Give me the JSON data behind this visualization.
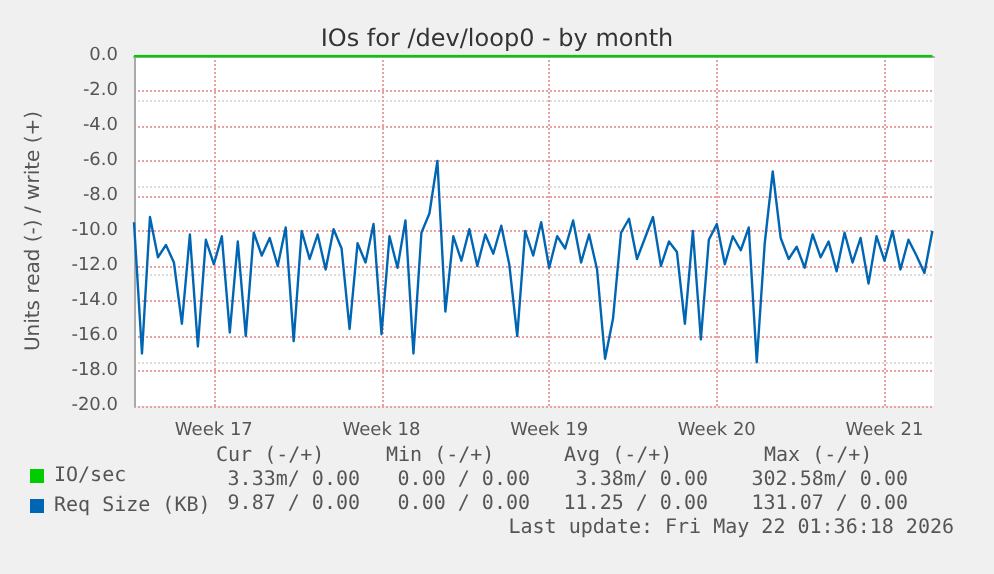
{
  "chart_data": {
    "type": "line",
    "title": "IOs for /dev/loop0 - by month",
    "ylabel": "Units read (-) / write (+)",
    "xlim": [
      "2026-04-18T16:00",
      "2026-05-22T01:36"
    ],
    "xticks": [
      {
        "value": "2026-04-22",
        "label": "Week 17"
      },
      {
        "value": "2026-04-29",
        "label": "Week 18"
      },
      {
        "value": "2026-05-06",
        "label": "Week 19"
      },
      {
        "value": "2026-05-13",
        "label": "Week 20"
      },
      {
        "value": "2026-05-20",
        "label": "Week 21"
      }
    ],
    "ylim": [
      -20,
      0
    ],
    "yticks": [
      {
        "value": -20,
        "label": "-20.0"
      },
      {
        "value": -18,
        "label": "-18.0"
      },
      {
        "value": -16,
        "label": "-16.0"
      },
      {
        "value": -14,
        "label": "-14.0"
      },
      {
        "value": -12,
        "label": "-12.0"
      },
      {
        "value": -10,
        "label": "-10.0"
      },
      {
        "value": -8,
        "label": "-8.0"
      },
      {
        "value": -6,
        "label": "-6.0"
      },
      {
        "value": -4,
        "label": "-4.0"
      },
      {
        "value": -2,
        "label": "-2.0"
      },
      {
        "value": 0,
        "label": "0.0"
      }
    ],
    "grid": true,
    "legend": "bottom left",
    "marker": "none",
    "line_style": "solid",
    "series": [
      {
        "name": "IO/sec",
        "color": "#00cc00",
        "x": [
          "2026-04-18T16:00",
          "2026-05-22T00:00"
        ],
        "values": [
          0,
          0
        ]
      },
      {
        "name": "Req Size (KB)",
        "color": "#0066b3",
        "x": [
          "2026-04-18T16:00",
          "2026-04-19T00:00",
          "2026-04-19T08:00",
          "2026-04-19T16:00",
          "2026-04-20T00:00",
          "2026-04-20T08:00",
          "2026-04-20T16:00",
          "2026-04-21T00:00",
          "2026-04-21T08:00",
          "2026-04-21T16:00",
          "2026-04-22T00:00",
          "2026-04-22T08:00",
          "2026-04-22T16:00",
          "2026-04-23T00:00",
          "2026-04-23T08:00",
          "2026-04-23T16:00",
          "2026-04-24T00:00",
          "2026-04-24T08:00",
          "2026-04-24T16:00",
          "2026-04-25T00:00",
          "2026-04-25T08:00",
          "2026-04-25T16:00",
          "2026-04-26T00:00",
          "2026-04-26T08:00",
          "2026-04-26T16:00",
          "2026-04-27T00:00",
          "2026-04-27T08:00",
          "2026-04-27T16:00",
          "2026-04-28T00:00",
          "2026-04-28T08:00",
          "2026-04-28T16:00",
          "2026-04-29T00:00",
          "2026-04-29T08:00",
          "2026-04-29T16:00",
          "2026-04-30T00:00",
          "2026-04-30T08:00",
          "2026-04-30T16:00",
          "2026-05-01T00:00",
          "2026-05-01T08:00",
          "2026-05-01T16:00",
          "2026-05-02T00:00",
          "2026-05-02T08:00",
          "2026-05-02T16:00",
          "2026-05-03T00:00",
          "2026-05-03T08:00",
          "2026-05-03T16:00",
          "2026-05-04T00:00",
          "2026-05-04T08:00",
          "2026-05-04T16:00",
          "2026-05-05T00:00",
          "2026-05-05T08:00",
          "2026-05-05T16:00",
          "2026-05-06T00:00",
          "2026-05-06T08:00",
          "2026-05-06T16:00",
          "2026-05-07T00:00",
          "2026-05-07T08:00",
          "2026-05-07T16:00",
          "2026-05-08T00:00",
          "2026-05-08T08:00",
          "2026-05-08T16:00",
          "2026-05-09T00:00",
          "2026-05-09T08:00",
          "2026-05-09T16:00",
          "2026-05-10T00:00",
          "2026-05-10T08:00",
          "2026-05-10T16:00",
          "2026-05-11T00:00",
          "2026-05-11T08:00",
          "2026-05-11T16:00",
          "2026-05-12T00:00",
          "2026-05-12T08:00",
          "2026-05-12T16:00",
          "2026-05-13T00:00",
          "2026-05-13T08:00",
          "2026-05-13T16:00",
          "2026-05-14T00:00",
          "2026-05-14T08:00",
          "2026-05-14T16:00",
          "2026-05-15T00:00",
          "2026-05-15T08:00",
          "2026-05-15T16:00",
          "2026-05-16T00:00",
          "2026-05-16T08:00",
          "2026-05-16T16:00",
          "2026-05-17T00:00",
          "2026-05-17T08:00",
          "2026-05-17T16:00",
          "2026-05-18T00:00",
          "2026-05-18T08:00",
          "2026-05-18T16:00",
          "2026-05-19T00:00",
          "2026-05-19T08:00",
          "2026-05-19T16:00",
          "2026-05-20T00:00",
          "2026-05-20T08:00",
          "2026-05-20T16:00",
          "2026-05-21T00:00",
          "2026-05-21T08:00",
          "2026-05-21T16:00",
          "2026-05-22T00:00"
        ],
        "values": [
          -9.5,
          -17.0,
          -9.2,
          -11.5,
          -10.8,
          -11.8,
          -15.3,
          -10.2,
          -16.6,
          -10.5,
          -11.9,
          -10.3,
          -15.8,
          -10.6,
          -16.0,
          -10.1,
          -11.4,
          -10.4,
          -12.0,
          -9.8,
          -16.3,
          -10.0,
          -11.6,
          -10.2,
          -12.2,
          -9.9,
          -11.0,
          -15.6,
          -10.7,
          -11.8,
          -9.6,
          -15.9,
          -10.3,
          -12.1,
          -9.4,
          -17.0,
          -10.1,
          -9.0,
          -6.0,
          -14.6,
          -10.3,
          -11.7,
          -9.9,
          -12.0,
          -10.2,
          -11.3,
          -9.7,
          -11.9,
          -16.0,
          -10.0,
          -11.4,
          -9.5,
          -12.1,
          -10.3,
          -11.0,
          -9.4,
          -11.8,
          -10.2,
          -12.2,
          -17.3,
          -15.0,
          -10.1,
          -9.3,
          -11.6,
          -10.4,
          -9.2,
          -12.0,
          -10.6,
          -11.2,
          -15.3,
          -10.0,
          -16.2,
          -10.5,
          -9.6,
          -11.9,
          -10.3,
          -11.1,
          -9.8,
          -17.5,
          -10.7,
          -6.6,
          -10.4,
          -11.6,
          -10.9,
          -12.1,
          -10.2,
          -11.5,
          -10.6,
          -12.3,
          -10.1,
          -11.8,
          -10.4,
          -13.0,
          -10.3,
          -11.7,
          -10.0,
          -12.2,
          -10.5,
          -11.4,
          -12.4,
          -10.0
        ]
      }
    ],
    "annotations": [
      "Cur (-/+)",
      "Min (-/+)",
      "Avg (-/+)",
      "Max (-/+)",
      "3.33m/ 0.00",
      "0.00 / 0.00",
      "3.38m/ 0.00",
      "302.58m/ 0.00",
      "9.87 / 0.00",
      "0.00 / 0.00",
      "11.25 / 0.00",
      "131.07 / 0.00",
      "Last update: Fri May 22 01:36:18 2026"
    ]
  }
}
